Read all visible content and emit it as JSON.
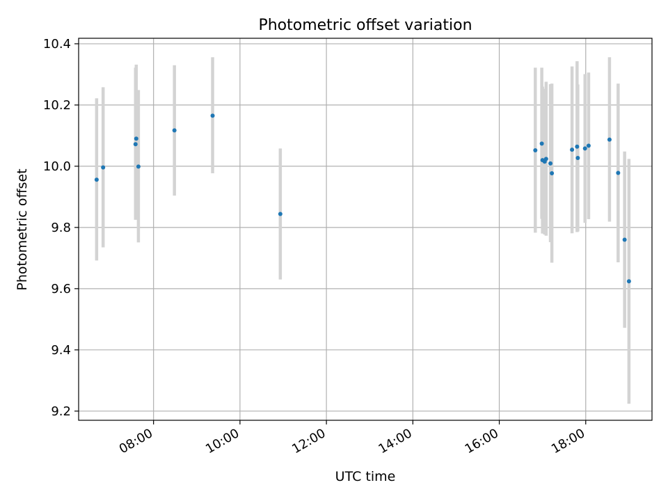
{
  "chart_data": {
    "type": "scatter",
    "title": "Photometric offset variation",
    "xlabel": "UTC time",
    "ylabel": "Photometric offset",
    "x_ticks": [
      "08:00",
      "10:00",
      "12:00",
      "14:00",
      "16:00",
      "18:00"
    ],
    "y_ticks": [
      "9.2",
      "9.4",
      "9.6",
      "9.8",
      "10.0",
      "10.2",
      "10.4"
    ],
    "xlim": [
      "06:16",
      "19:32"
    ],
    "ylim": [
      9.17,
      10.418
    ],
    "grid": true,
    "marker_color": "#1f77b4",
    "errorbar_color": "#d3d3d3",
    "points": [
      {
        "x": "06:41",
        "y": 9.956,
        "lo": 9.692,
        "hi": 10.222
      },
      {
        "x": "06:50",
        "y": 9.996,
        "lo": 9.735,
        "hi": 10.258
      },
      {
        "x": "07:35",
        "y": 10.072,
        "lo": 9.825,
        "hi": 10.322
      },
      {
        "x": "07:36",
        "y": 10.09,
        "lo": 9.848,
        "hi": 10.332
      },
      {
        "x": "07:39",
        "y": 9.999,
        "lo": 9.751,
        "hi": 10.249
      },
      {
        "x": "08:29",
        "y": 10.117,
        "lo": 9.904,
        "hi": 10.33
      },
      {
        "x": "09:22",
        "y": 10.165,
        "lo": 9.977,
        "hi": 10.356
      },
      {
        "x": "10:56",
        "y": 9.844,
        "lo": 9.63,
        "hi": 10.058
      },
      {
        "x": "16:50",
        "y": 10.052,
        "lo": 9.783,
        "hi": 10.322
      },
      {
        "x": "16:59",
        "y": 10.074,
        "lo": 9.828,
        "hi": 10.322
      },
      {
        "x": "17:00",
        "y": 10.02,
        "lo": 9.78,
        "hi": 10.26
      },
      {
        "x": "17:03",
        "y": 10.015,
        "lo": 9.777,
        "hi": 10.253
      },
      {
        "x": "17:05",
        "y": 10.024,
        "lo": 9.773,
        "hi": 10.276
      },
      {
        "x": "17:11",
        "y": 10.009,
        "lo": 9.752,
        "hi": 10.268
      },
      {
        "x": "17:13",
        "y": 9.977,
        "lo": 9.685,
        "hi": 10.27
      },
      {
        "x": "17:41",
        "y": 10.054,
        "lo": 9.781,
        "hi": 10.326
      },
      {
        "x": "17:48",
        "y": 10.064,
        "lo": 9.785,
        "hi": 10.343
      },
      {
        "x": "17:49",
        "y": 10.027,
        "lo": 9.787,
        "hi": 10.267
      },
      {
        "x": "17:59",
        "y": 10.058,
        "lo": 9.815,
        "hi": 10.301
      },
      {
        "x": "18:04",
        "y": 10.067,
        "lo": 9.827,
        "hi": 10.306
      },
      {
        "x": "18:33",
        "y": 10.087,
        "lo": 9.819,
        "hi": 10.356
      },
      {
        "x": "18:45",
        "y": 9.978,
        "lo": 9.686,
        "hi": 10.27
      },
      {
        "x": "18:54",
        "y": 9.76,
        "lo": 9.472,
        "hi": 10.048
      },
      {
        "x": "19:00",
        "y": 9.624,
        "lo": 9.224,
        "hi": 10.024
      }
    ]
  }
}
